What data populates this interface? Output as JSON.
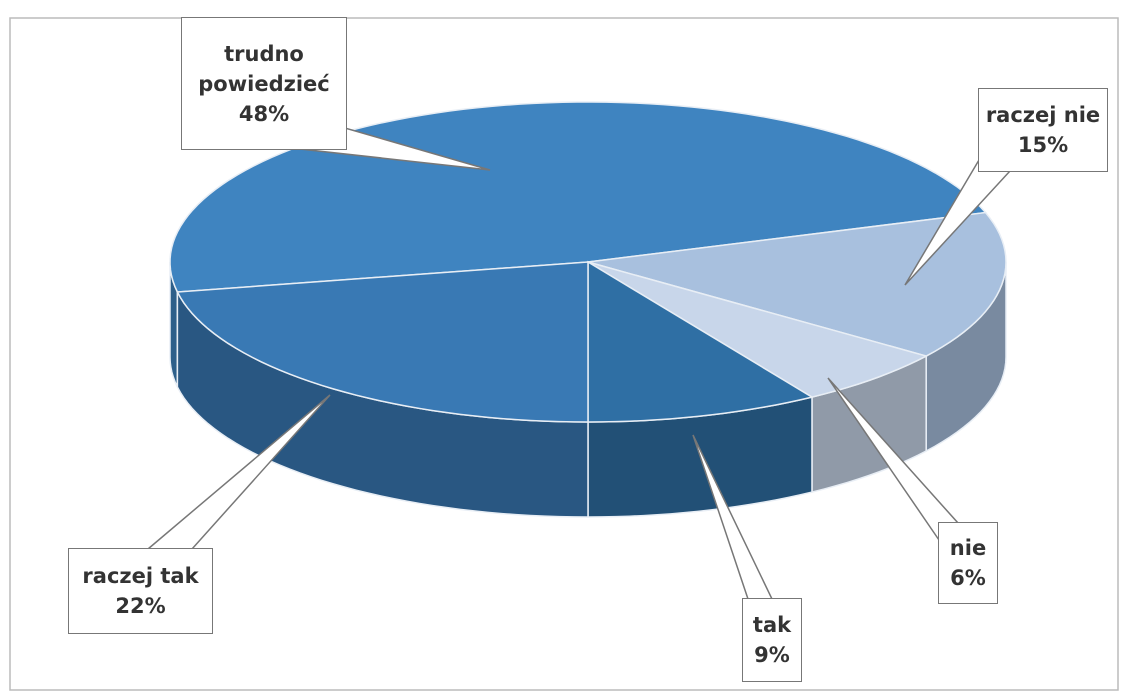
{
  "chart_data": {
    "type": "pie",
    "categories": [
      "trudno powiedzieć",
      "raczej nie",
      "nie",
      "tak",
      "raczej tak"
    ],
    "values": [
      48,
      15,
      6,
      9,
      22
    ],
    "value_labels": [
      "48%",
      "15%",
      "6%",
      "9%",
      "22%"
    ],
    "colors": [
      "#3f84c0",
      "#a8c0de",
      "#c8d6ea",
      "#2f6fa4",
      "#3979b4"
    ]
  }
}
